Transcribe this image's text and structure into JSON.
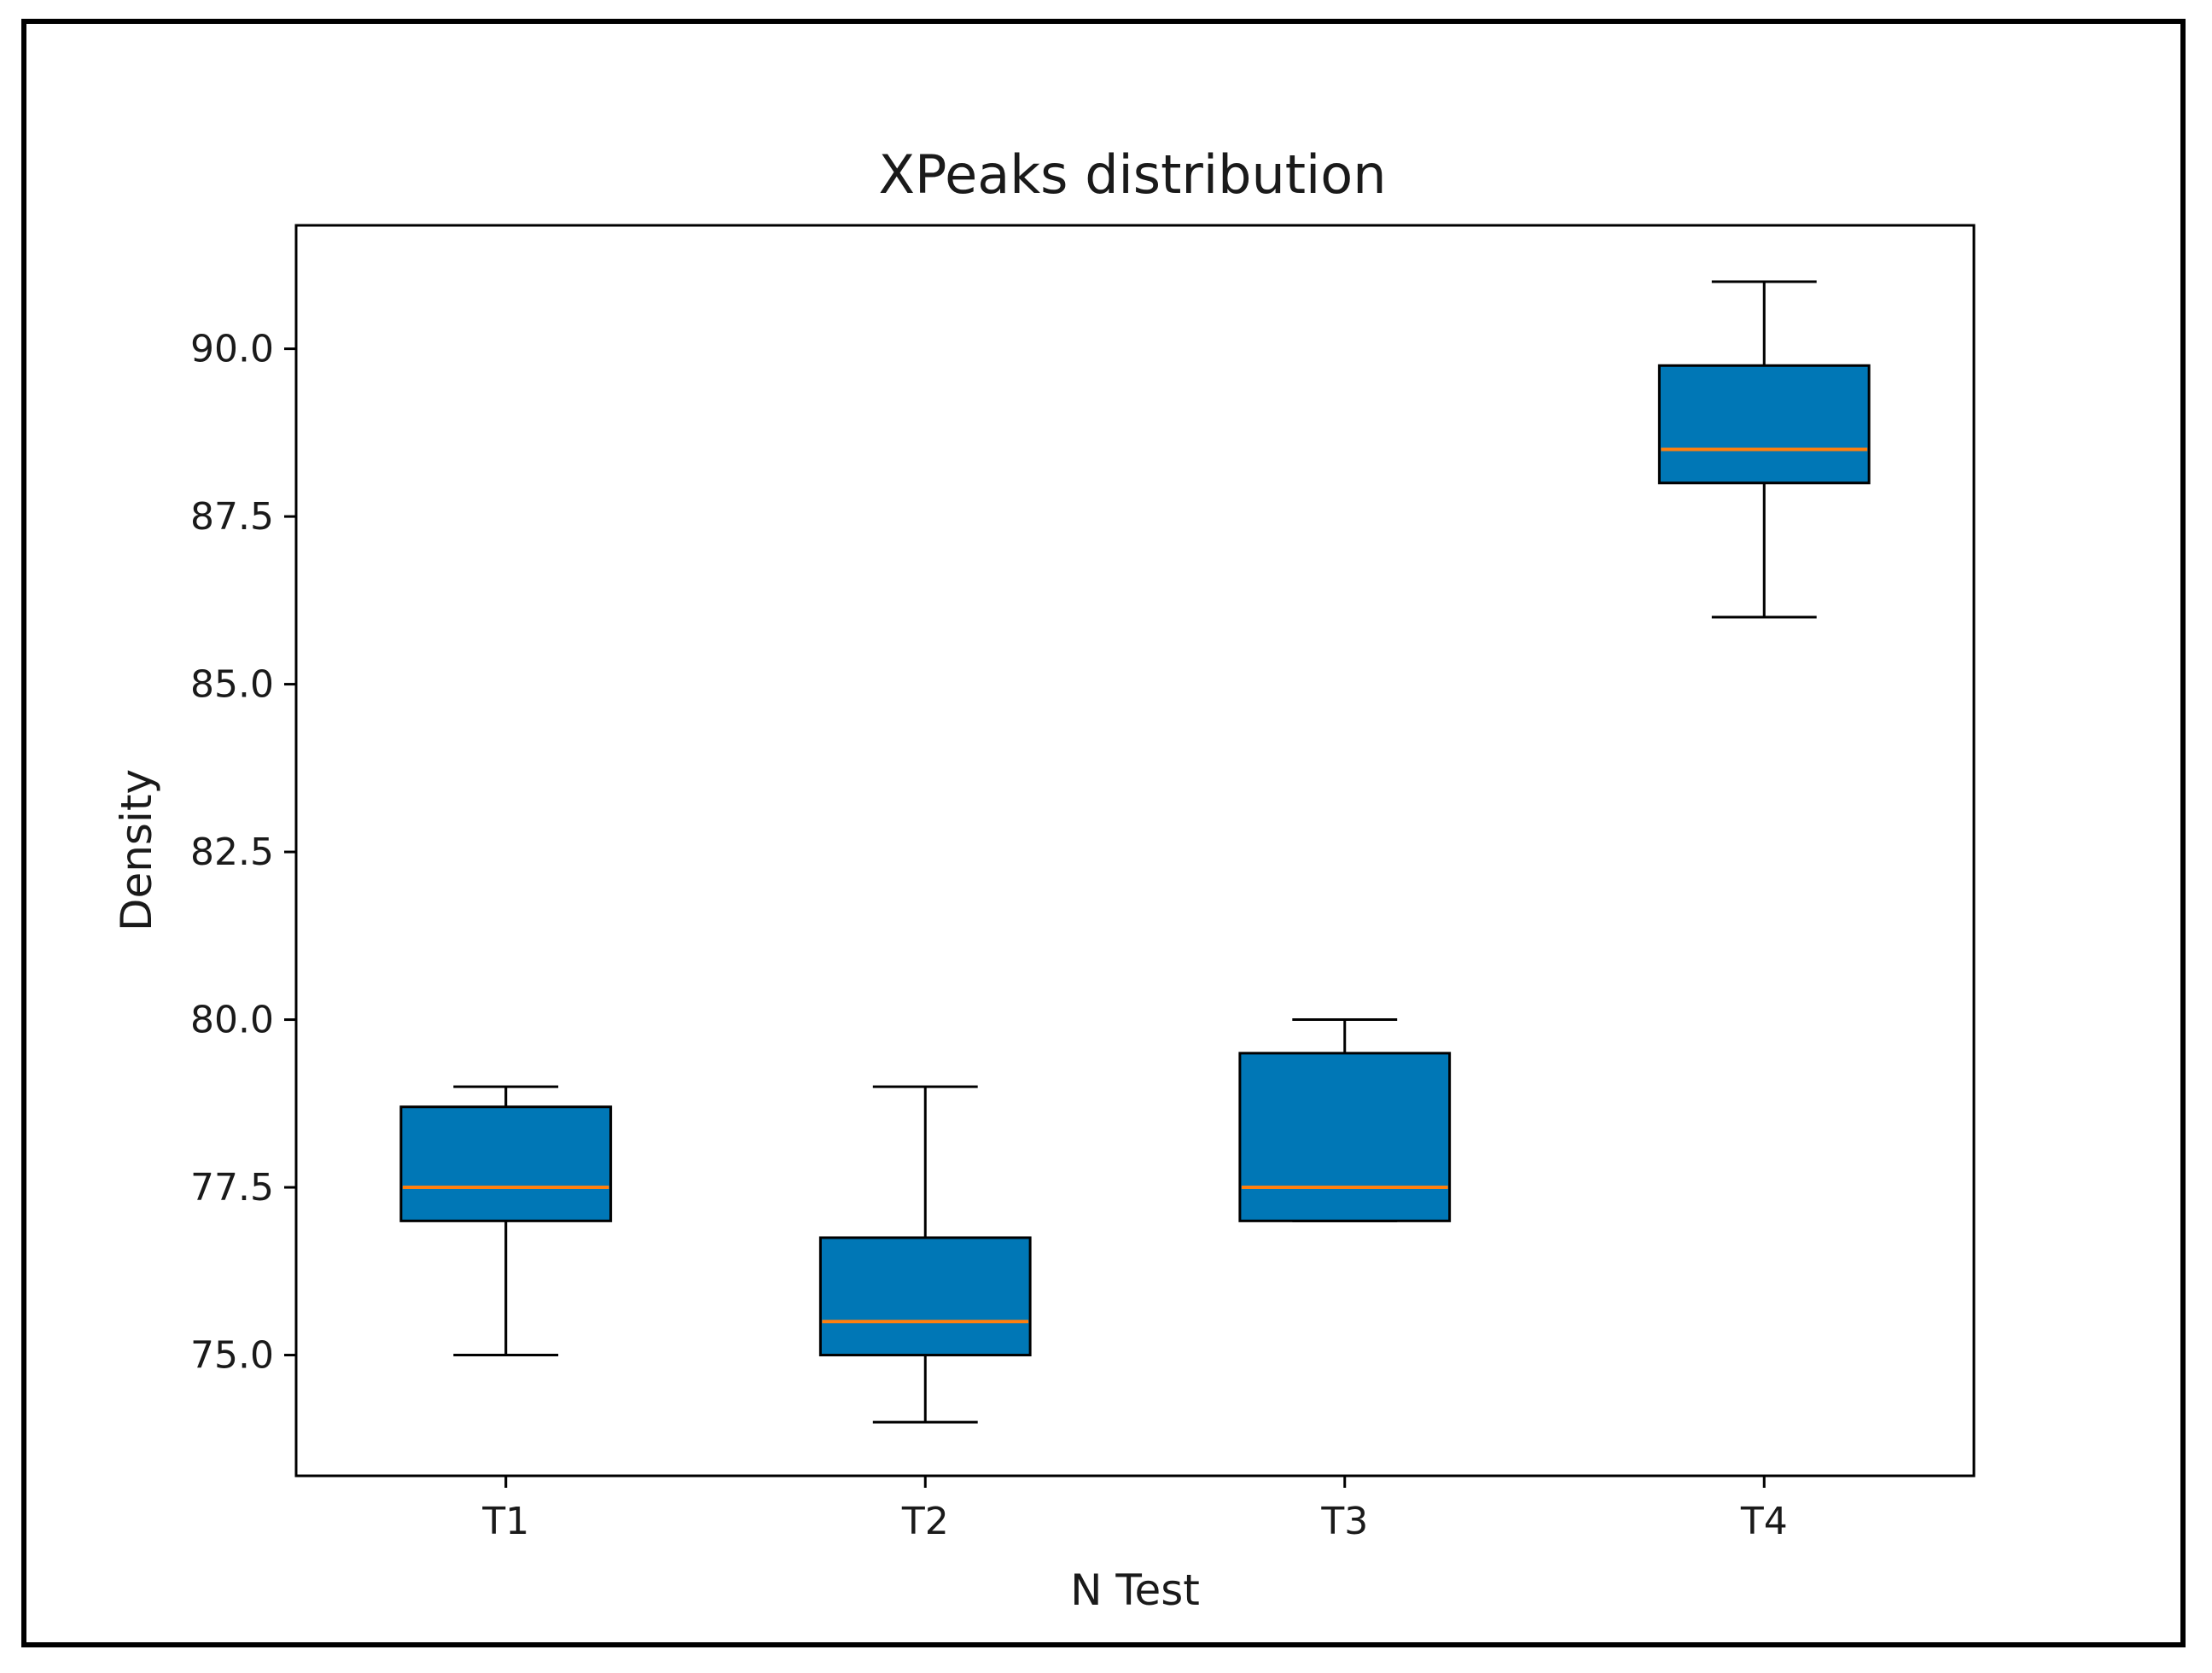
{
  "chart_data": {
    "type": "boxplot",
    "title": "XPeaks distribution",
    "xlabel": "N Test",
    "ylabel": "Density",
    "categories": [
      "T1",
      "T2",
      "T3",
      "T4"
    ],
    "boxes": [
      {
        "label": "T1",
        "whisker_low": 75.0,
        "q1": 77.0,
        "median": 77.5,
        "q3": 78.7,
        "whisker_high": 79.0
      },
      {
        "label": "T2",
        "whisker_low": 74.0,
        "q1": 75.0,
        "median": 75.5,
        "q3": 76.75,
        "whisker_high": 79.0
      },
      {
        "label": "T3",
        "whisker_low": 77.0,
        "q1": 77.0,
        "median": 77.5,
        "q3": 79.5,
        "whisker_high": 80.0
      },
      {
        "label": "T4",
        "whisker_low": 86.0,
        "q1": 88.0,
        "median": 88.5,
        "q3": 89.75,
        "whisker_high": 91.0
      }
    ],
    "yticks": [
      75.0,
      77.5,
      80.0,
      82.5,
      85.0,
      87.5,
      90.0
    ],
    "ytick_labels": [
      "75.0",
      "77.5",
      "80.0",
      "82.5",
      "85.0",
      "87.5",
      "90.0"
    ],
    "ylim": [
      73.2,
      91.84
    ],
    "grid": false,
    "colors": {
      "box_fill": "#0077b6",
      "median": "#ff7f0e",
      "edge": "#000000"
    }
  }
}
